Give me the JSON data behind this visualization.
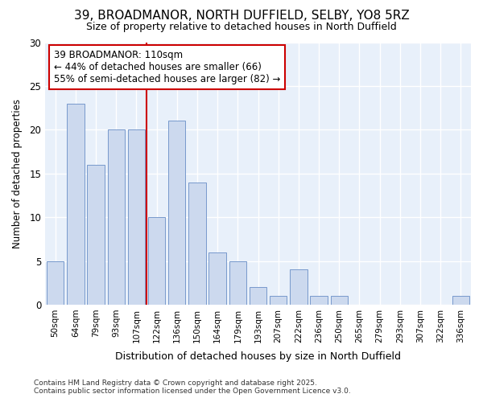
{
  "title": "39, BROADMANOR, NORTH DUFFIELD, SELBY, YO8 5RZ",
  "subtitle": "Size of property relative to detached houses in North Duffield",
  "xlabel": "Distribution of detached houses by size in North Duffield",
  "ylabel": "Number of detached properties",
  "categories": [
    "50sqm",
    "64sqm",
    "79sqm",
    "93sqm",
    "107sqm",
    "122sqm",
    "136sqm",
    "150sqm",
    "164sqm",
    "179sqm",
    "193sqm",
    "207sqm",
    "222sqm",
    "236sqm",
    "250sqm",
    "265sqm",
    "279sqm",
    "293sqm",
    "307sqm",
    "322sqm",
    "336sqm"
  ],
  "values": [
    5,
    23,
    16,
    20,
    20,
    10,
    21,
    14,
    6,
    5,
    2,
    1,
    4,
    1,
    1,
    0,
    0,
    0,
    0,
    0,
    1
  ],
  "bar_color": "#ccd9ee",
  "bar_edge_color": "#7799cc",
  "ylim": [
    0,
    30
  ],
  "yticks": [
    0,
    5,
    10,
    15,
    20,
    25,
    30
  ],
  "redline_x": 4.5,
  "annotation_text": "39 BROADMANOR: 110sqm\n← 44% of detached houses are smaller (66)\n55% of semi-detached houses are larger (82) →",
  "annotation_box_color": "white",
  "annotation_box_edge_color": "#cc0000",
  "redline_color": "#cc0000",
  "fig_background_color": "#ffffff",
  "plot_background_color": "#e8f0fa",
  "footer_line1": "Contains HM Land Registry data © Crown copyright and database right 2025.",
  "footer_line2": "Contains public sector information licensed under the Open Government Licence v3.0."
}
